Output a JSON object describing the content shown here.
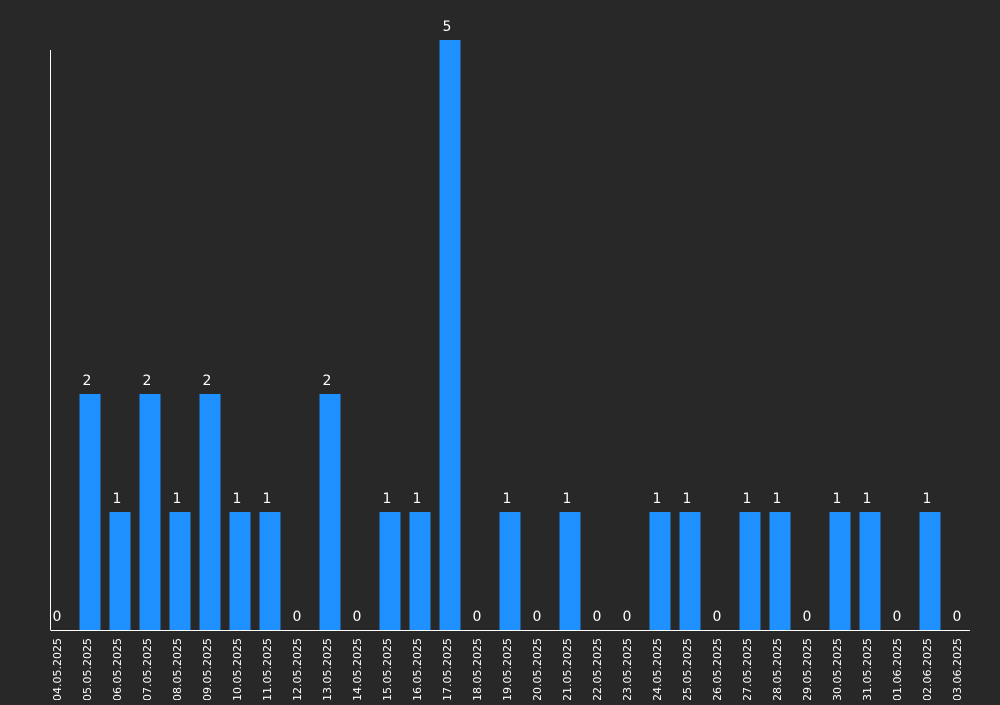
{
  "chart_data": {
    "type": "bar",
    "title": "",
    "xlabel": "",
    "ylabel": "",
    "ylim": [
      0,
      5
    ],
    "grid": false,
    "categories": [
      "04.05.2025",
      "05.05.2025",
      "06.05.2025",
      "07.05.2025",
      "08.05.2025",
      "09.05.2025",
      "10.05.2025",
      "11.05.2025",
      "12.05.2025",
      "13.05.2025",
      "14.05.2025",
      "15.05.2025",
      "16.05.2025",
      "17.05.2025",
      "18.05.2025",
      "19.05.2025",
      "20.05.2025",
      "21.05.2025",
      "22.05.2025",
      "23.05.2025",
      "24.05.2025",
      "25.05.2025",
      "26.05.2025",
      "27.05.2025",
      "28.05.2025",
      "29.05.2025",
      "30.05.2025",
      "31.05.2025",
      "01.06.2025",
      "02.06.2025",
      "03.06.2025"
    ],
    "values": [
      0,
      2,
      1,
      2,
      1,
      2,
      1,
      1,
      0,
      2,
      0,
      1,
      1,
      5,
      0,
      1,
      0,
      1,
      0,
      0,
      1,
      1,
      0,
      1,
      1,
      0,
      1,
      1,
      0,
      1,
      0
    ],
    "data_labels": [
      "0",
      "2",
      "1",
      "2",
      "1",
      "2",
      "1",
      "1",
      "0",
      "2",
      "0",
      "1",
      "1",
      "5",
      "0",
      "1",
      "0",
      "1",
      "0",
      "0",
      "1",
      "1",
      "0",
      "1",
      "1",
      "0",
      "1",
      "1",
      "0",
      "1",
      "0"
    ],
    "colors": {
      "bar": "#1e90ff",
      "text": "#ffffff",
      "axis": "#ffffff",
      "background": "#282828"
    }
  }
}
